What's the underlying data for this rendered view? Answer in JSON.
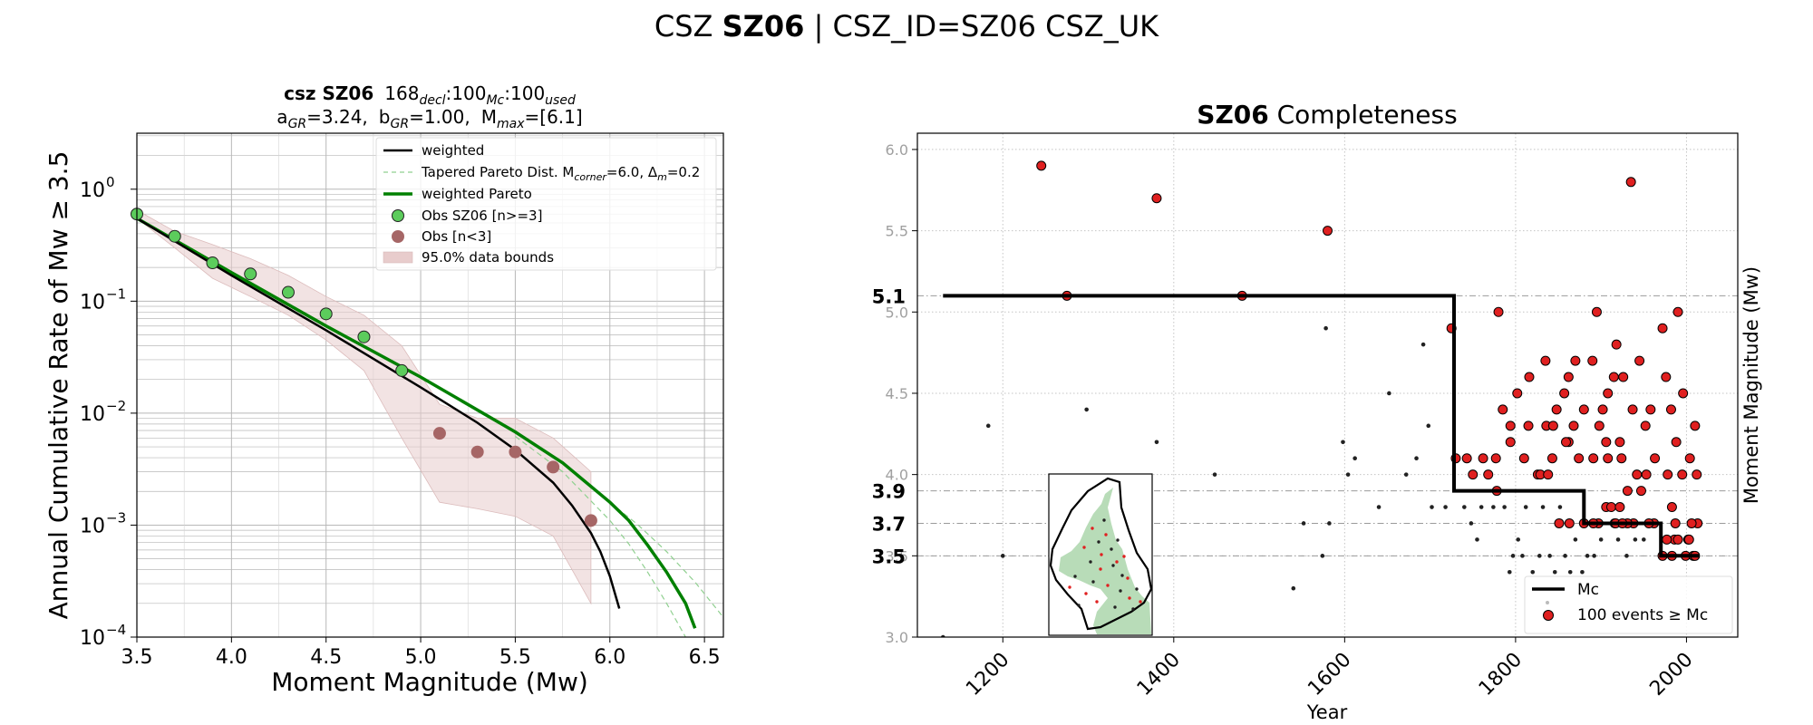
{
  "figure": {
    "title_prefix": "CSZ ",
    "title_bold": "SZ06",
    "title_suffix": " | CSZ_ID=SZ06 CSZ_UK"
  },
  "chart_data": [
    {
      "type": "line",
      "title": {
        "line1_bold": "csz SZ06",
        "line1_rest": "168",
        "decl_sub": "decl",
        "mc_val": ":100",
        "mc_sub": "Mc",
        "used_val": ":100",
        "used_sub": "used",
        "a_prefix": "a",
        "a_sub": "GR",
        "a_val": "=3.24,",
        "b_prefix": "b",
        "b_sub": "GR",
        "b_val": "=1.00,",
        "m_prefix": "M",
        "m_sub": "max",
        "m_val": "=[6.1]"
      },
      "xlabel": "Moment Magnitude (Mw)",
      "ylabel": "Annual Cumulative Rate of Mw  ≥  3.5",
      "xlim": [
        3.5,
        6.6
      ],
      "ylim_log10": [
        -4,
        0.5
      ],
      "y_scale": "log",
      "grid": true,
      "x_ticks": [
        "3.5",
        "4.0",
        "4.5",
        "5.0",
        "5.5",
        "6.0",
        "6.5"
      ],
      "x_tick_values": [
        3.5,
        4.0,
        4.5,
        5.0,
        5.5,
        6.0,
        6.5
      ],
      "y_tick_exponents": [
        0,
        -1,
        -2,
        -3,
        -4
      ],
      "y_tick_base": "10",
      "y_tick_exp_labels": [
        "0",
        "−1",
        "−2",
        "−3",
        "−4"
      ],
      "legend": {
        "placement": "upper right",
        "weighted": "weighted",
        "tapered_prefix": "Tapered Pareto Dist. M",
        "tapered_sub1": "corner",
        "tapered_mid": "=6.0, Δ",
        "tapered_sub2": "m",
        "tapered_suffix": "=0.2",
        "weighted_pareto": "weighted Pareto",
        "obs_good": "Obs SZ06 [n>=3]",
        "obs_few": "Obs [n<3]",
        "bounds": "95.0% data bounds"
      },
      "colors": {
        "weighted": "#000000",
        "pareto": "#008000",
        "tapered": "#90d090",
        "obs_good": "#5ccc5c",
        "obs_few": "#a66666",
        "bounds": "#e8cccc"
      },
      "series": {
        "weighted": {
          "x": [
            3.5,
            4.0,
            4.5,
            5.0,
            5.3,
            5.5,
            5.7,
            5.8,
            5.9,
            5.95,
            6.0,
            6.05
          ],
          "y": [
            0.55,
            0.17,
            0.055,
            0.017,
            0.0082,
            0.0047,
            0.0024,
            0.0015,
            0.00085,
            0.00058,
            0.00035,
            0.00018
          ]
        },
        "weighted_pareto": {
          "x": [
            3.5,
            4.0,
            4.5,
            5.0,
            5.5,
            5.75,
            6.0,
            6.1,
            6.2,
            6.3,
            6.4,
            6.45
          ],
          "y": [
            0.55,
            0.18,
            0.06,
            0.021,
            0.0068,
            0.0036,
            0.0016,
            0.0011,
            0.00066,
            0.00038,
            0.0002,
            0.00012
          ]
        },
        "tapered_a": {
          "x": [
            5.5,
            5.75,
            6.0,
            6.1,
            6.2,
            6.3,
            6.4,
            6.5
          ],
          "y": [
            0.0062,
            0.003,
            0.0011,
            0.00068,
            0.00038,
            0.0002,
            0.0001,
            5e-05
          ]
        },
        "tapered_b": {
          "x": [
            5.5,
            5.75,
            6.0,
            6.15,
            6.3,
            6.45,
            6.6
          ],
          "y": [
            0.0068,
            0.0036,
            0.0016,
            0.001,
            0.00058,
            0.00031,
            0.00015
          ]
        },
        "obs_good": {
          "x": [
            3.5,
            3.7,
            3.9,
            4.1,
            4.3,
            4.5,
            4.7,
            4.9
          ],
          "y": [
            0.6,
            0.38,
            0.22,
            0.175,
            0.12,
            0.077,
            0.048,
            0.024
          ]
        },
        "obs_few": {
          "x": [
            5.1,
            5.3,
            5.5,
            5.7,
            5.9
          ],
          "y": [
            0.0066,
            0.0045,
            0.0045,
            0.0033,
            0.0011
          ]
        },
        "bounds": {
          "x_upper": [
            3.5,
            3.7,
            3.9,
            4.1,
            4.3,
            4.5,
            4.7,
            4.9,
            5.1,
            5.3,
            5.5,
            5.7,
            5.9
          ],
          "y_upper": [
            0.65,
            0.42,
            0.32,
            0.24,
            0.17,
            0.11,
            0.075,
            0.04,
            0.012,
            0.009,
            0.009,
            0.006,
            0.003
          ],
          "x_lower": [
            5.9,
            5.7,
            5.5,
            5.3,
            5.1,
            4.9,
            4.7,
            4.5,
            4.3,
            4.1,
            3.9,
            3.7,
            3.5
          ],
          "y_lower": [
            0.0002,
            0.0008,
            0.0012,
            0.0014,
            0.0016,
            0.006,
            0.024,
            0.045,
            0.075,
            0.11,
            0.16,
            0.3,
            0.55
          ]
        }
      }
    },
    {
      "type": "scatter",
      "title_bold": "SZ06",
      "title_rest": " Completeness",
      "xlabel": "Year",
      "ylabel": "Moment Magnitude (Mw)",
      "xlim": [
        1100,
        2060
      ],
      "ylim": [
        3.0,
        6.1
      ],
      "grid": true,
      "x_ticks": [
        "1200",
        "1400",
        "1600",
        "1800",
        "2000"
      ],
      "x_tick_values": [
        1200,
        1400,
        1600,
        1800,
        2000
      ],
      "y_ticks": [
        "3.0",
        "3.5",
        "4.0",
        "4.5",
        "5.0",
        "5.5",
        "6.0"
      ],
      "y_tick_values": [
        3.0,
        3.5,
        4.0,
        4.5,
        5.0,
        5.5,
        6.0
      ],
      "mc_levels": [
        "5.1",
        "3.9",
        "3.7",
        "3.5"
      ],
      "mc_level_values": [
        5.1,
        3.9,
        3.7,
        3.5
      ],
      "mc_step": {
        "x": [
          1130,
          1728,
          1728,
          1880,
          1880,
          1970,
          1970,
          2015
        ],
        "y": [
          5.1,
          5.1,
          3.9,
          3.9,
          3.7,
          3.7,
          3.5,
          3.5
        ]
      },
      "legend": {
        "placement": "lower right",
        "mc": "Mc",
        "events": "100 events  ≥  Mc"
      },
      "colors": {
        "event": "#e02020",
        "small": "#222222",
        "step": "#000000"
      },
      "events": {
        "x": [
          1245,
          1380,
          1580,
          1935,
          1275,
          1480,
          1725,
          1780,
          1895,
          1990,
          1835,
          1870,
          1890,
          1918,
          1945,
          1972,
          1802,
          1816,
          1836,
          1844,
          1848,
          1857,
          1862,
          1880,
          1902,
          1926,
          1958,
          1976,
          1996,
          1908,
          1915,
          1937,
          1785,
          1794,
          1815,
          1862,
          1868,
          1898,
          1906,
          1922,
          1952,
          1982,
          2010,
          1730,
          1743,
          1762,
          1777,
          1794,
          1810,
          1826,
          1843,
          1859,
          1874,
          1891,
          1908,
          1924,
          1942,
          1963,
          1988,
          2004,
          1750,
          1768,
          1829,
          1838,
          1947,
          1953,
          1978,
          1995,
          2012,
          1778,
          1906,
          1912,
          1922,
          1931,
          1983,
          1880,
          1897,
          1916,
          1938,
          1962,
          1986,
          2002,
          2013,
          1931,
          1956,
          1987,
          2006,
          1972,
          1983,
          1999,
          2008,
          1977,
          1990,
          2003,
          2010,
          1917,
          1851,
          1863,
          1891,
          1925
        ],
        "y": [
          5.9,
          5.7,
          5.5,
          5.8,
          5.1,
          5.1,
          4.9,
          5.0,
          5.0,
          5.0,
          4.7,
          4.7,
          4.7,
          4.8,
          4.7,
          4.9,
          4.5,
          4.6,
          4.3,
          4.3,
          4.4,
          4.5,
          4.6,
          4.4,
          4.4,
          4.6,
          4.4,
          4.6,
          4.5,
          4.5,
          4.6,
          4.4,
          4.4,
          4.3,
          4.3,
          4.2,
          4.3,
          4.3,
          4.2,
          4.2,
          4.3,
          4.4,
          4.3,
          4.1,
          4.1,
          4.1,
          4.1,
          4.2,
          4.1,
          4.0,
          4.1,
          4.2,
          4.1,
          4.1,
          4.1,
          4.1,
          4.0,
          4.1,
          4.2,
          4.1,
          4.0,
          4.0,
          4.0,
          4.0,
          3.9,
          4.0,
          4.0,
          4.0,
          4.0,
          3.9,
          3.8,
          3.8,
          3.8,
          3.9,
          3.8,
          3.7,
          3.7,
          3.7,
          3.7,
          3.7,
          3.6,
          3.6,
          3.7,
          3.7,
          3.7,
          3.7,
          3.7,
          3.5,
          3.5,
          3.5,
          3.5,
          3.6,
          3.6,
          3.6,
          3.5,
          3.7,
          3.7,
          3.7,
          3.7,
          3.7
        ]
      },
      "small_events": {
        "x": [
          1130,
          1183,
          1200,
          1298,
          1380,
          1448,
          1540,
          1552,
          1574,
          1578,
          1582,
          1598,
          1604,
          1612,
          1640,
          1652,
          1672,
          1684,
          1692,
          1698,
          1702,
          1718,
          1740,
          1748,
          1755,
          1760,
          1774,
          1787,
          1793,
          1797,
          1803,
          1808,
          1812,
          1820,
          1828,
          1832,
          1840,
          1846,
          1852,
          1858,
          1864,
          1870,
          1878,
          1884,
          1892,
          1900,
          1910,
          1920,
          1930,
          1940,
          1950,
          1960,
          1970,
          1980,
          1990,
          1998,
          2005,
          2012
        ],
        "y": [
          3.0,
          4.3,
          3.5,
          4.4,
          4.2,
          4.0,
          3.3,
          3.7,
          3.5,
          4.9,
          3.7,
          4.2,
          4.0,
          4.1,
          3.8,
          4.5,
          4.0,
          4.1,
          4.8,
          4.3,
          3.8,
          3.8,
          3.8,
          3.7,
          3.6,
          3.8,
          3.8,
          3.8,
          3.4,
          3.5,
          3.6,
          3.5,
          3.8,
          3.4,
          3.5,
          3.8,
          3.5,
          3.4,
          3.8,
          3.5,
          3.4,
          3.6,
          3.4,
          3.5,
          3.5,
          3.6,
          3.8,
          3.6,
          3.5,
          3.6,
          3.6,
          3.7,
          3.5,
          3.6,
          3.7,
          3.5,
          3.6,
          3.5
        ]
      }
    }
  ]
}
